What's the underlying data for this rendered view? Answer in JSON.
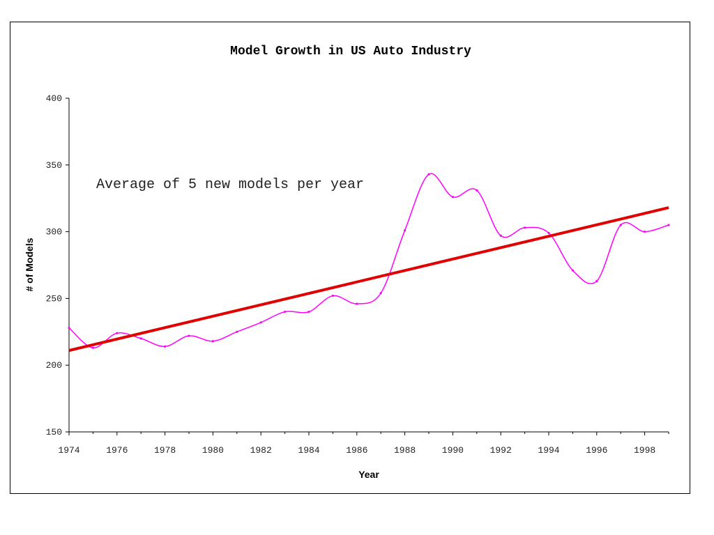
{
  "chart_data": {
    "type": "line",
    "title": "Model Growth in US Auto Industry",
    "xlabel": "Year",
    "ylabel": "# of Models",
    "xlim": [
      1974,
      1999
    ],
    "ylim": [
      150,
      400
    ],
    "yticks": [
      150,
      200,
      250,
      300,
      350,
      400
    ],
    "xticks": [
      1974,
      1976,
      1978,
      1980,
      1982,
      1984,
      1986,
      1988,
      1990,
      1992,
      1994,
      1996,
      1998
    ],
    "grid": false,
    "annotation": "Average of 5 new models per year",
    "series": [
      {
        "points": [
          [
            1974,
            228
          ],
          [
            1975,
            213
          ],
          [
            1976,
            224
          ],
          [
            1977,
            220
          ],
          [
            1978,
            214
          ],
          [
            1979,
            222
          ],
          [
            1980,
            218
          ],
          [
            1981,
            225
          ],
          [
            1982,
            232
          ],
          [
            1983,
            240
          ],
          [
            1984,
            240
          ],
          [
            1985,
            252
          ],
          [
            1986,
            246
          ],
          [
            1987,
            254
          ],
          [
            1988,
            301
          ],
          [
            1989,
            343
          ],
          [
            1990,
            326
          ],
          [
            1991,
            331
          ],
          [
            1992,
            297
          ],
          [
            1993,
            303
          ],
          [
            1994,
            299
          ],
          [
            1995,
            271
          ],
          [
            1996,
            263
          ],
          [
            1997,
            305
          ],
          [
            1998,
            300
          ],
          [
            1999,
            305
          ]
        ],
        "color": "#ff00ff"
      },
      {
        "points": [
          [
            1974,
            211
          ],
          [
            1999,
            318
          ]
        ],
        "color": "#e00000"
      }
    ]
  }
}
